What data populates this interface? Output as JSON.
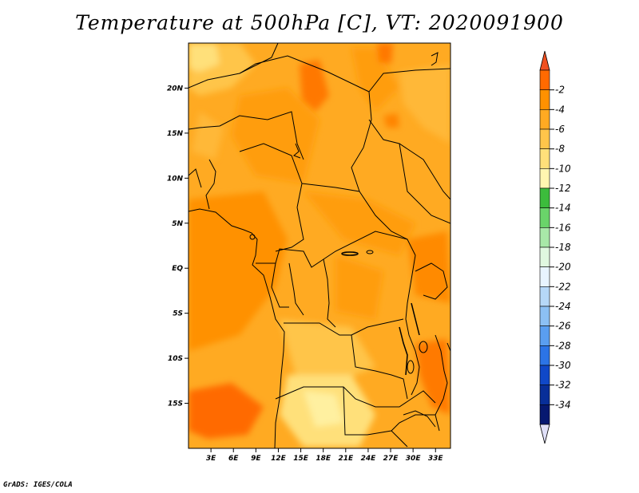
{
  "title": "Temperature at 500hPa [C], VT: 2020091900",
  "credit": "GrADS: IGES/COLA",
  "map": {
    "lat_range": [
      -20,
      25
    ],
    "lon_range": [
      0,
      35
    ],
    "lat_ticks": [
      {
        "value": 20,
        "label": "20N"
      },
      {
        "value": 15,
        "label": "15N"
      },
      {
        "value": 10,
        "label": "10N"
      },
      {
        "value": 5,
        "label": "5N"
      },
      {
        "value": 0,
        "label": "EQ"
      },
      {
        "value": -5,
        "label": "5S"
      },
      {
        "value": -10,
        "label": "10S"
      },
      {
        "value": -15,
        "label": "15S"
      }
    ],
    "lon_ticks": [
      {
        "value": 3,
        "label": "3E"
      },
      {
        "value": 6,
        "label": "6E"
      },
      {
        "value": 9,
        "label": "9E"
      },
      {
        "value": 12,
        "label": "12E"
      },
      {
        "value": 15,
        "label": "15E"
      },
      {
        "value": 18,
        "label": "18E"
      },
      {
        "value": 21,
        "label": "21E"
      },
      {
        "value": 24,
        "label": "24E"
      },
      {
        "value": 27,
        "label": "27E"
      },
      {
        "value": 30,
        "label": "30E"
      },
      {
        "value": 33,
        "label": "33E"
      }
    ]
  },
  "colorbar": {
    "labels": [
      "-2",
      "-4",
      "-6",
      "-8",
      "-10",
      "-12",
      "-14",
      "-16",
      "-18",
      "-20",
      "-22",
      "-24",
      "-26",
      "-28",
      "-30",
      "-32",
      "-34"
    ],
    "colors": [
      "#ff6a00",
      "#ff9100",
      "#ffaa22",
      "#ffc54a",
      "#ffe07a",
      "#fff6b0",
      "#3cbc3c",
      "#6ad46a",
      "#a8e8a8",
      "#e0f8e0",
      "#e8f4ff",
      "#b6d8f8",
      "#8cc0f4",
      "#5a9ef0",
      "#2c74e6",
      "#1048c8",
      "#082e98",
      "#061870"
    ],
    "top_arrow_color": "#f05020",
    "bottom_arrow_color": "#e0e0f8"
  }
}
